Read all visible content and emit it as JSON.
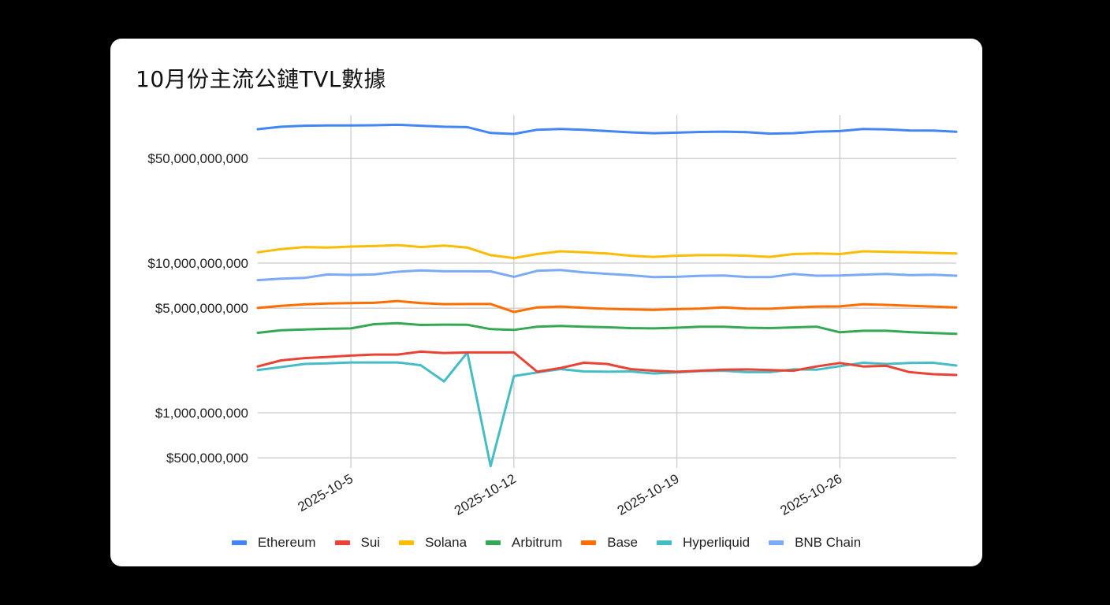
{
  "card": {
    "title": "10月份主流公鏈TVL數據"
  },
  "chart_data": {
    "type": "line",
    "title": "10月份主流公鏈TVL數據",
    "xlabel": "",
    "ylabel": "",
    "yscale": "log",
    "ylim": [
      430000000,
      95000000000
    ],
    "grid": true,
    "legend_position": "bottom",
    "y_ticks": [
      {
        "value": 50000000000,
        "label": "$50,000,000,000"
      },
      {
        "value": 10000000000,
        "label": "$10,000,000,000"
      },
      {
        "value": 5000000000,
        "label": "$5,000,000,000"
      },
      {
        "value": 1000000000,
        "label": "$1,000,000,000"
      },
      {
        "value": 500000000,
        "label": "$500,000,000"
      }
    ],
    "x_ticks": [
      {
        "index": 4,
        "label": "2025-10-5"
      },
      {
        "index": 11,
        "label": "2025-10-12"
      },
      {
        "index": 18,
        "label": "2025-10-19"
      },
      {
        "index": 25,
        "label": "2025-10-26"
      }
    ],
    "x": [
      "2025-10-1",
      "2025-10-2",
      "2025-10-3",
      "2025-10-4",
      "2025-10-5",
      "2025-10-6",
      "2025-10-7",
      "2025-10-8",
      "2025-10-9",
      "2025-10-10",
      "2025-10-11",
      "2025-10-12",
      "2025-10-13",
      "2025-10-14",
      "2025-10-15",
      "2025-10-16",
      "2025-10-17",
      "2025-10-18",
      "2025-10-19",
      "2025-10-20",
      "2025-10-21",
      "2025-10-22",
      "2025-10-23",
      "2025-10-24",
      "2025-10-25",
      "2025-10-26",
      "2025-10-27",
      "2025-10-28",
      "2025-10-29",
      "2025-10-30",
      "2025-10-31"
    ],
    "series": [
      {
        "name": "Ethereum",
        "color": "#4285F4",
        "values": [
          78500000000,
          81500000000,
          82800000000,
          83200000000,
          83200000000,
          83400000000,
          84000000000,
          82800000000,
          81500000000,
          81000000000,
          74000000000,
          73000000000,
          77800000000,
          78800000000,
          77800000000,
          76200000000,
          74800000000,
          73800000000,
          74400000000,
          75200000000,
          75600000000,
          75000000000,
          73300000000,
          73800000000,
          75600000000,
          76200000000,
          78800000000,
          78200000000,
          77000000000,
          76800000000,
          75400000000
        ]
      },
      {
        "name": "Sui",
        "color": "#EA4335",
        "values": [
          2040000000,
          2240000000,
          2320000000,
          2360000000,
          2410000000,
          2450000000,
          2450000000,
          2560000000,
          2510000000,
          2530000000,
          2530000000,
          2530000000,
          1880000000,
          1990000000,
          2160000000,
          2120000000,
          1960000000,
          1910000000,
          1880000000,
          1910000000,
          1940000000,
          1950000000,
          1930000000,
          1910000000,
          2040000000,
          2150000000,
          2040000000,
          2060000000,
          1870000000,
          1810000000,
          1790000000
        ]
      },
      {
        "name": "Solana",
        "color": "#FBBC04",
        "values": [
          11800000000,
          12400000000,
          12800000000,
          12700000000,
          12900000000,
          13000000000,
          13200000000,
          12800000000,
          13100000000,
          12700000000,
          11300000000,
          10800000000,
          11500000000,
          12000000000,
          11800000000,
          11600000000,
          11200000000,
          11000000000,
          11200000000,
          11300000000,
          11300000000,
          11200000000,
          11000000000,
          11500000000,
          11600000000,
          11500000000,
          12000000000,
          11900000000,
          11800000000,
          11700000000,
          11600000000
        ]
      },
      {
        "name": "Arbitrum",
        "color": "#34A853",
        "values": [
          3420000000,
          3560000000,
          3600000000,
          3640000000,
          3660000000,
          3910000000,
          3970000000,
          3860000000,
          3880000000,
          3870000000,
          3620000000,
          3580000000,
          3760000000,
          3800000000,
          3760000000,
          3730000000,
          3680000000,
          3660000000,
          3700000000,
          3760000000,
          3760000000,
          3700000000,
          3680000000,
          3720000000,
          3760000000,
          3450000000,
          3530000000,
          3530000000,
          3460000000,
          3410000000,
          3370000000
        ]
      },
      {
        "name": "Base",
        "color": "#FF6D01",
        "values": [
          5020000000,
          5180000000,
          5300000000,
          5380000000,
          5400000000,
          5430000000,
          5580000000,
          5400000000,
          5320000000,
          5330000000,
          5330000000,
          4720000000,
          5060000000,
          5130000000,
          5030000000,
          4950000000,
          4910000000,
          4870000000,
          4930000000,
          4970000000,
          5060000000,
          4970000000,
          4960000000,
          5050000000,
          5130000000,
          5140000000,
          5310000000,
          5260000000,
          5190000000,
          5130000000,
          5060000000
        ]
      },
      {
        "name": "Hyperliquid",
        "color": "#46BDC6",
        "values": [
          1930000000,
          2020000000,
          2120000000,
          2140000000,
          2170000000,
          2170000000,
          2170000000,
          2080000000,
          1620000000,
          2530000000,
          440000000,
          1760000000,
          1860000000,
          1960000000,
          1890000000,
          1880000000,
          1890000000,
          1830000000,
          1860000000,
          1900000000,
          1910000000,
          1870000000,
          1870000000,
          1950000000,
          1940000000,
          2050000000,
          2160000000,
          2120000000,
          2150000000,
          2160000000,
          2070000000
        ]
      },
      {
        "name": "BNB Chain",
        "color": "#7BAAF7",
        "values": [
          7700000000,
          7880000000,
          7960000000,
          8400000000,
          8340000000,
          8400000000,
          8750000000,
          8940000000,
          8820000000,
          8820000000,
          8800000000,
          8100000000,
          8880000000,
          9000000000,
          8680000000,
          8480000000,
          8300000000,
          8060000000,
          8100000000,
          8230000000,
          8260000000,
          8080000000,
          8060000000,
          8460000000,
          8240000000,
          8260000000,
          8380000000,
          8460000000,
          8320000000,
          8360000000,
          8240000000
        ]
      }
    ]
  }
}
